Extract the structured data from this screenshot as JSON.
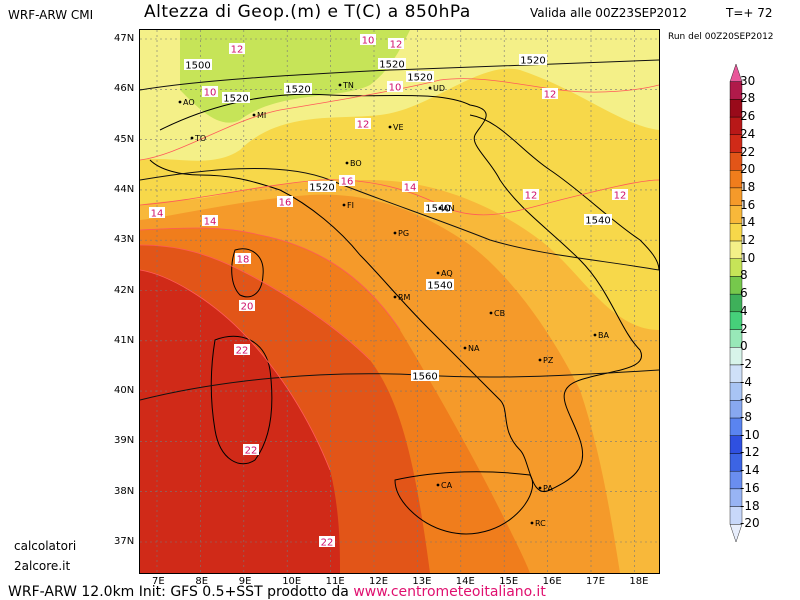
{
  "header": {
    "model": "WRF-ARW CMI",
    "title": "Altezza di Geop.(m) e T(C) a 850hPa",
    "valid": "Valida alle 00Z23SEP2012",
    "tplus": "T=+ 72",
    "run": "Run del 00Z20SEP2012"
  },
  "footer": {
    "prefix": "WRF-ARW 12.0km Init: GFS 0.5+SST prodotto da",
    "url": "www.centrometeoitaliano.it"
  },
  "credits": {
    "line1": "calcolatori",
    "line2": "2alcore.it"
  },
  "axes": {
    "lat": [
      "47N",
      "46N",
      "45N",
      "44N",
      "43N",
      "42N",
      "41N",
      "40N",
      "39N",
      "38N",
      "37N"
    ],
    "lon": [
      "7E",
      "8E",
      "9E",
      "10E",
      "11E",
      "12E",
      "13E",
      "14E",
      "15E",
      "16E",
      "17E",
      "18E"
    ]
  },
  "legend": {
    "ticks": [
      "30",
      "28",
      "26",
      "24",
      "22",
      "20",
      "18",
      "16",
      "14",
      "12",
      "10",
      "8",
      "6",
      "4",
      "2",
      "0",
      "-2",
      "-4",
      "-6",
      "-8",
      "-10",
      "-12",
      "-14",
      "-16",
      "-18",
      "-20"
    ],
    "colors": [
      "#e8589a",
      "#b01a4a",
      "#990a1a",
      "#b81818",
      "#d02a18",
      "#e25518",
      "#f07d1c",
      "#f59a2a",
      "#f8b83a",
      "#f7d84a",
      "#f4f088",
      "#c6e458",
      "#76c84c",
      "#3eb05a",
      "#46d07a",
      "#98e8b8",
      "#d8f4ea",
      "#cfe0f8",
      "#a8c4f4",
      "#88a8f0",
      "#5a84f0",
      "#2f50e0",
      "#3c64e4",
      "#6a8ef0",
      "#98b4f4",
      "#c8d8fa",
      "#e8eefc"
    ]
  },
  "isolines": {
    "geopotential": [
      "1500",
      "1520",
      "1520",
      "1520",
      "1520",
      "1520",
      "1520",
      "1540",
      "1540",
      "1540",
      "1560"
    ],
    "temperature": [
      "12",
      "10",
      "10",
      "12",
      "10",
      "12",
      "12",
      "12",
      "12",
      "14",
      "14",
      "16",
      "16",
      "14",
      "18",
      "20",
      "22",
      "22",
      "22"
    ]
  },
  "cities": [
    "AO",
    "TO",
    "MI",
    "TN",
    "UD",
    "BO",
    "FI",
    "PG",
    "AQ",
    "RM",
    "CB",
    "NA",
    "PZ",
    "BA",
    "CA",
    "PA",
    "RC",
    "AN",
    "VE"
  ]
}
